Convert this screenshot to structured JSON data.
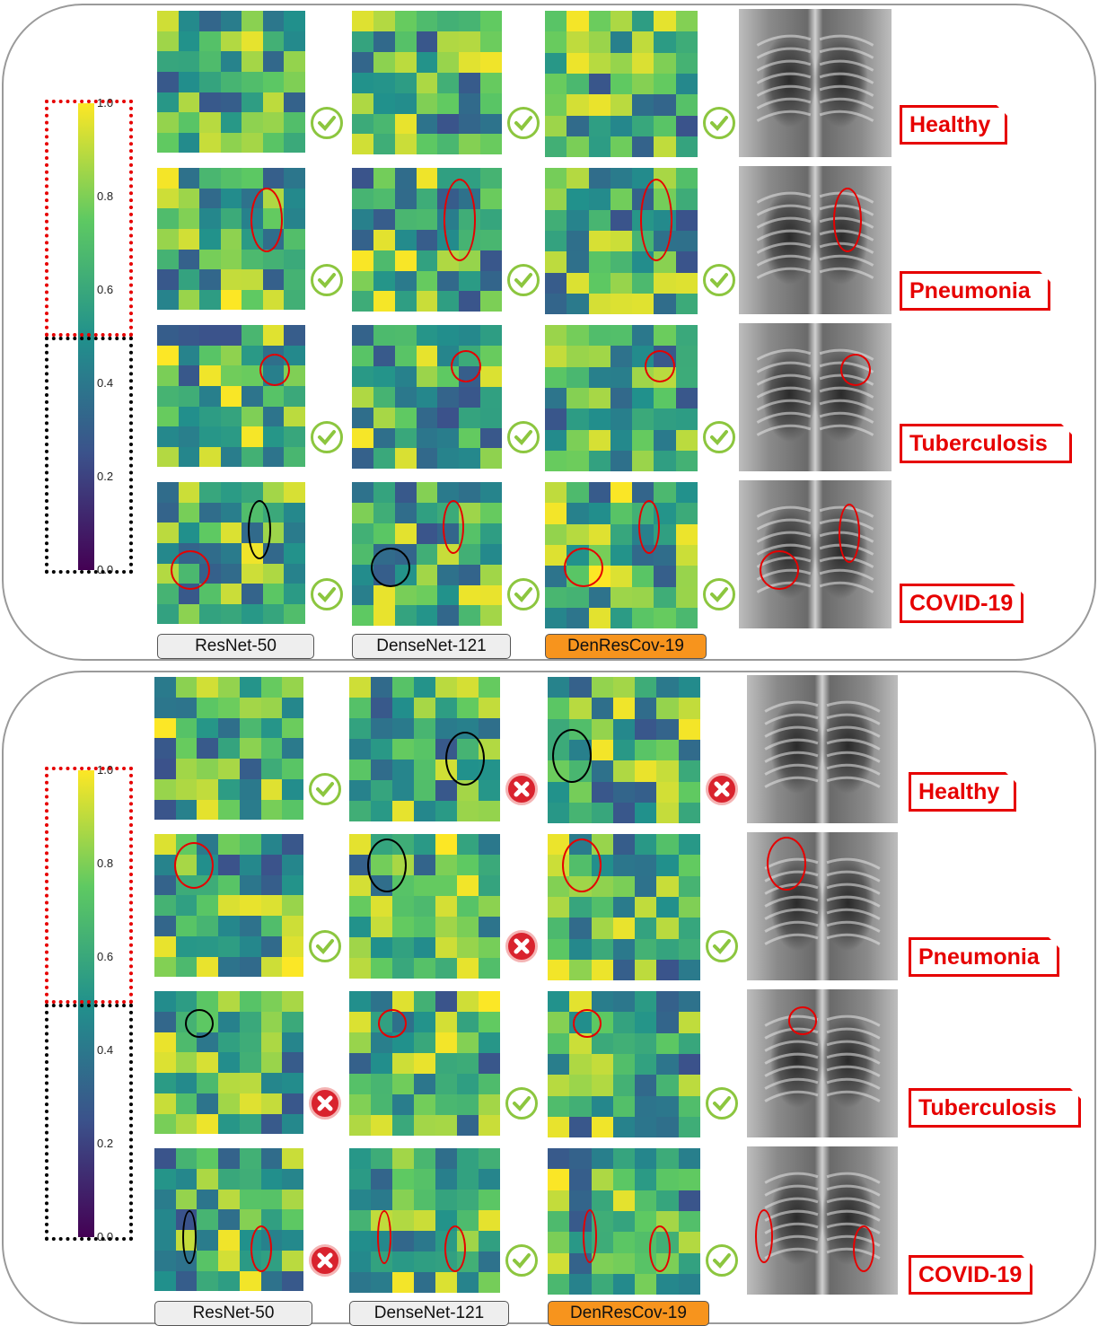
{
  "panels": [
    {
      "rows": [
        {
          "label": "Healthy",
          "resnet": {
            "correct": true,
            "seed": 11
          },
          "densenet": {
            "correct": true,
            "seed": 23
          },
          "denres": {
            "correct": true,
            "seed": 37
          }
        },
        {
          "label": "Pneumonia",
          "resnet": {
            "correct": true,
            "seed": 41
          },
          "densenet": {
            "correct": true,
            "seed": 53
          },
          "denres": {
            "correct": true,
            "seed": 67
          }
        },
        {
          "label": "Tuberculosis",
          "resnet": {
            "correct": true,
            "seed": 71
          },
          "densenet": {
            "correct": true,
            "seed": 83
          },
          "denres": {
            "correct": true,
            "seed": 97
          }
        },
        {
          "label": "COVID-19",
          "resnet": {
            "correct": true,
            "seed": 101
          },
          "densenet": {
            "correct": true,
            "seed": 113
          },
          "denres": {
            "correct": true,
            "seed": 127
          }
        }
      ]
    },
    {
      "rows": [
        {
          "label": "Healthy",
          "resnet": {
            "correct": true,
            "seed": 131
          },
          "densenet": {
            "correct": false,
            "seed": 139
          },
          "denres": {
            "correct": false,
            "seed": 149
          }
        },
        {
          "label": "Pneumonia",
          "resnet": {
            "correct": true,
            "seed": 151
          },
          "densenet": {
            "correct": false,
            "seed": 157
          },
          "denres": {
            "correct": true,
            "seed": 163
          }
        },
        {
          "label": "Tuberculosis",
          "resnet": {
            "correct": false,
            "seed": 167
          },
          "densenet": {
            "correct": true,
            "seed": 173
          },
          "denres": {
            "correct": true,
            "seed": 179
          }
        },
        {
          "label": "COVID-19",
          "resnet": {
            "correct": false,
            "seed": 181
          },
          "densenet": {
            "correct": true,
            "seed": 191
          },
          "denres": {
            "correct": true,
            "seed": 193
          }
        }
      ]
    }
  ],
  "models": [
    "ResNet-50",
    "DenseNet-121",
    "DenResCov-19"
  ],
  "colorbar_ticks": [
    "1.0",
    "0.8",
    "0.6",
    "0.4",
    "0.2",
    "0.0"
  ],
  "colors": {
    "label_red": "#e60000",
    "highlight_model": "#f7941d",
    "model_box": "#eeeeee",
    "check_green": "#8cc63f",
    "cross_red": "#d9232e"
  }
}
